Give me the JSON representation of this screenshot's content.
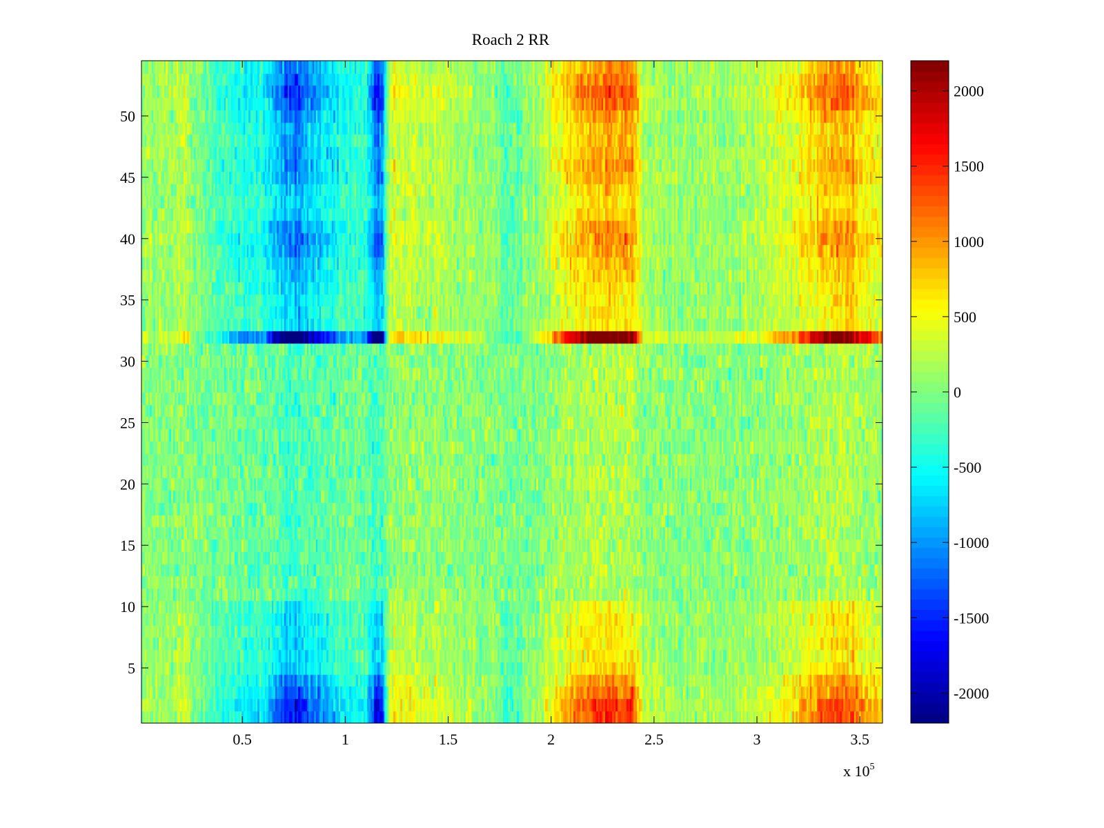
{
  "chart_data": {
    "type": "heatmap",
    "title": "Roach 2 RR",
    "xlabel": "",
    "ylabel": "",
    "x_exponent_label": "x 10",
    "x_exponent_power": "5",
    "xlim": [
      1000,
      361000
    ],
    "ylim": [
      0.5,
      54.5
    ],
    "x_ticks": [
      0.5,
      1,
      1.5,
      2,
      2.5,
      3,
      3.5
    ],
    "x_tick_labels": [
      "0.5",
      "1",
      "1.5",
      "2",
      "2.5",
      "3",
      "3.5"
    ],
    "y_ticks": [
      5,
      10,
      15,
      20,
      25,
      30,
      35,
      40,
      45,
      50
    ],
    "y_tick_labels": [
      "5",
      "10",
      "15",
      "20",
      "25",
      "30",
      "35",
      "40",
      "45",
      "50"
    ],
    "colorbar": {
      "colormap": "jet",
      "clim": [
        -2200,
        2200
      ],
      "ticks": [
        -2000,
        -1500,
        -1000,
        -500,
        0,
        500,
        1000,
        1500,
        2000
      ],
      "tick_labels": [
        "-2000",
        "-1500",
        "-1000",
        "-500",
        "0",
        "500",
        "1000",
        "1500",
        "2000"
      ]
    },
    "rows": 54,
    "x_range": [
      1000,
      361000
    ],
    "column_profile_x": [
      0,
      20000,
      22000,
      25000,
      40000,
      50000,
      60000,
      70000,
      75000,
      80000,
      90000,
      100000,
      110000,
      115000,
      118000,
      121000,
      125000,
      140000,
      160000,
      180000,
      195000,
      205000,
      215000,
      225000,
      240000,
      245000,
      260000,
      280000,
      300000,
      320000,
      330000,
      340000,
      355000,
      361000
    ],
    "column_profile_value": [
      100,
      200,
      500,
      50,
      -300,
      -700,
      -600,
      -1500,
      -1700,
      -1400,
      -1000,
      -600,
      -500,
      -1800,
      -1800,
      300,
      500,
      400,
      200,
      -200,
      200,
      900,
      1300,
      1500,
      1400,
      300,
      100,
      200,
      300,
      700,
      1200,
      1500,
      900,
      700
    ],
    "row_band_weights": [
      1.0,
      1.0,
      0.85,
      0.7,
      0.5,
      0.45,
      0.5,
      0.45,
      0.45,
      0.4,
      0.05,
      0.05,
      0.0,
      0.0,
      0.0,
      0.0,
      0.0,
      0.0,
      0.0,
      0.0,
      0.0,
      0.0,
      0.0,
      0.0,
      0.0,
      0.0,
      0.0,
      0.0,
      0.0,
      0.0,
      0.05,
      1.6,
      0.45,
      0.45,
      0.45,
      0.5,
      0.55,
      0.6,
      0.7,
      0.75,
      0.7,
      0.55,
      0.5,
      0.55,
      0.65,
      0.7,
      0.65,
      0.6,
      0.6,
      0.7,
      0.85,
      0.9,
      0.8,
      0.7
    ],
    "noise_amplitude": 450
  }
}
